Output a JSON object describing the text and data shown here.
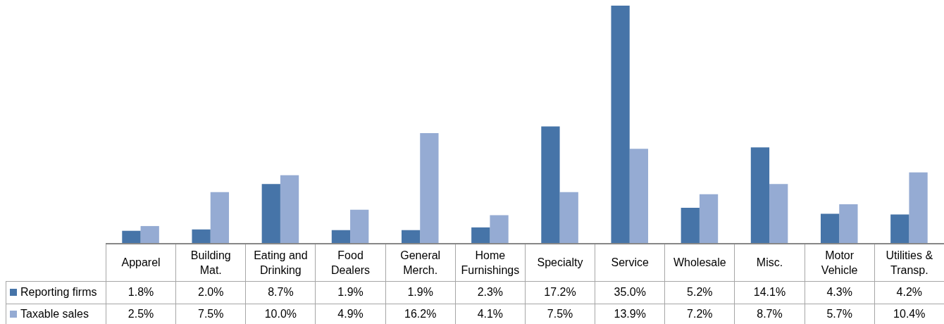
{
  "chart_data": {
    "type": "bar",
    "categories": [
      "Apparel",
      "Building Mat.",
      "Eating and Drinking",
      "Food Dealers",
      "General Merch.",
      "Home Furnishings",
      "Specialty",
      "Service",
      "Wholesale",
      "Misc.",
      "Motor Vehicle",
      "Utilities & Transp."
    ],
    "series": [
      {
        "name": "Reporting firms",
        "color": "#4674a8",
        "values": [
          1.8,
          2.0,
          8.7,
          1.9,
          1.9,
          2.3,
          17.2,
          35.0,
          5.2,
          14.1,
          4.3,
          4.2
        ],
        "value_labels": [
          "1.8%",
          "2.0%",
          "8.7%",
          "1.9%",
          "1.9%",
          "2.3%",
          "17.2%",
          "35.0%",
          "5.2%",
          "14.1%",
          "4.3%",
          "4.2%"
        ]
      },
      {
        "name": "Taxable sales",
        "color": "#95abd3",
        "values": [
          2.5,
          7.5,
          10.0,
          4.9,
          16.2,
          4.1,
          7.5,
          13.9,
          7.2,
          8.7,
          5.7,
          10.4
        ],
        "value_labels": [
          "2.5%",
          "7.5%",
          "10.0%",
          "4.9%",
          "16.2%",
          "4.1%",
          "7.5%",
          "13.9%",
          "7.2%",
          "8.7%",
          "5.7%",
          "10.4%"
        ]
      }
    ],
    "legend": "bottom"
  }
}
